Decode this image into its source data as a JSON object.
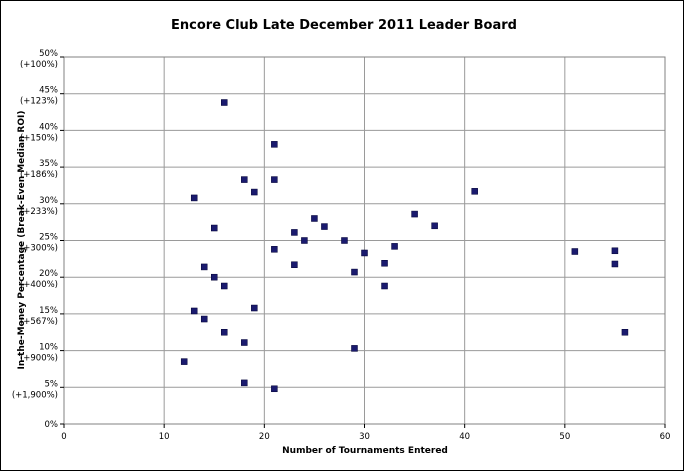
{
  "chart_data": {
    "type": "scatter",
    "title": "Encore Club Late December 2011 Leader Board",
    "xlabel": "Number of Tournaments Entered",
    "ylabel": "In-the-Money Percentage (Break-Even Median ROI)",
    "xlim": [
      0,
      60
    ],
    "ylim": [
      0,
      50
    ],
    "x_ticks": [
      0,
      10,
      20,
      30,
      40,
      50,
      60
    ],
    "y_ticks": [
      {
        "value": 0,
        "label": "0%",
        "sublabel": ""
      },
      {
        "value": 5,
        "label": "5%",
        "sublabel": "(+1,900%)"
      },
      {
        "value": 10,
        "label": "10%",
        "sublabel": "(+900%)"
      },
      {
        "value": 15,
        "label": "15%",
        "sublabel": "(+567%)"
      },
      {
        "value": 20,
        "label": "20%",
        "sublabel": "(+400%)"
      },
      {
        "value": 25,
        "label": "25%",
        "sublabel": "(+300%)"
      },
      {
        "value": 30,
        "label": "30%",
        "sublabel": "(+233%)"
      },
      {
        "value": 35,
        "label": "35%",
        "sublabel": "(+186%)"
      },
      {
        "value": 40,
        "label": "40%",
        "sublabel": "(+150%)"
      },
      {
        "value": 45,
        "label": "45%",
        "sublabel": "(+123%)"
      },
      {
        "value": 50,
        "label": "50%",
        "sublabel": "(+100%)"
      }
    ],
    "grid": true,
    "marker_color": "#1a1a6e",
    "points": [
      {
        "x": 12,
        "y": 8.5
      },
      {
        "x": 13,
        "y": 30.8
      },
      {
        "x": 13,
        "y": 15.4
      },
      {
        "x": 14,
        "y": 21.4
      },
      {
        "x": 14,
        "y": 14.3
      },
      {
        "x": 15,
        "y": 26.7
      },
      {
        "x": 15,
        "y": 20.0
      },
      {
        "x": 16,
        "y": 43.8
      },
      {
        "x": 16,
        "y": 18.8
      },
      {
        "x": 16,
        "y": 12.5
      },
      {
        "x": 18,
        "y": 33.3
      },
      {
        "x": 18,
        "y": 11.1
      },
      {
        "x": 18,
        "y": 5.6
      },
      {
        "x": 19,
        "y": 31.6
      },
      {
        "x": 19,
        "y": 15.8
      },
      {
        "x": 21,
        "y": 38.1
      },
      {
        "x": 21,
        "y": 33.3
      },
      {
        "x": 21,
        "y": 23.8
      },
      {
        "x": 21,
        "y": 4.8
      },
      {
        "x": 23,
        "y": 26.1
      },
      {
        "x": 23,
        "y": 21.7
      },
      {
        "x": 24,
        "y": 25.0
      },
      {
        "x": 25,
        "y": 28.0
      },
      {
        "x": 26,
        "y": 26.9
      },
      {
        "x": 28,
        "y": 25.0
      },
      {
        "x": 29,
        "y": 20.7
      },
      {
        "x": 29,
        "y": 10.3
      },
      {
        "x": 30,
        "y": 23.3
      },
      {
        "x": 32,
        "y": 21.9
      },
      {
        "x": 32,
        "y": 18.8
      },
      {
        "x": 33,
        "y": 24.2
      },
      {
        "x": 35,
        "y": 28.6
      },
      {
        "x": 37,
        "y": 27.0
      },
      {
        "x": 41,
        "y": 31.7
      },
      {
        "x": 51,
        "y": 23.5
      },
      {
        "x": 55,
        "y": 23.6
      },
      {
        "x": 55,
        "y": 21.8
      },
      {
        "x": 56,
        "y": 12.5
      }
    ]
  }
}
